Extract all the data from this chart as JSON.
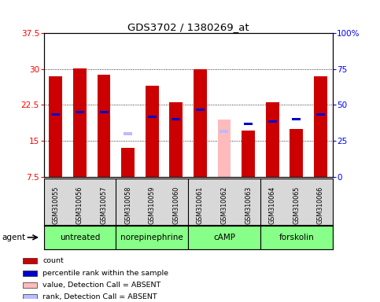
{
  "title": "GDS3702 / 1380269_at",
  "samples": [
    "GSM310055",
    "GSM310056",
    "GSM310057",
    "GSM310058",
    "GSM310059",
    "GSM310060",
    "GSM310061",
    "GSM310062",
    "GSM310063",
    "GSM310064",
    "GSM310065",
    "GSM310066"
  ],
  "count_values": [
    28.5,
    30.2,
    28.8,
    13.5,
    26.5,
    23.0,
    30.0,
    null,
    17.2,
    23.0,
    17.5,
    28.5
  ],
  "rank_values": [
    20.5,
    21.0,
    21.0,
    null,
    20.0,
    19.5,
    21.5,
    null,
    18.5,
    19.0,
    19.5,
    20.5
  ],
  "absent_count": [
    null,
    null,
    null,
    null,
    null,
    null,
    null,
    19.5,
    null,
    null,
    null,
    null
  ],
  "absent_rank": [
    null,
    null,
    null,
    16.5,
    null,
    null,
    null,
    17.0,
    null,
    null,
    null,
    null
  ],
  "groups": [
    {
      "label": "untreated",
      "start": 0,
      "end": 3
    },
    {
      "label": "norepinephrine",
      "start": 3,
      "end": 6
    },
    {
      "label": "cAMP",
      "start": 6,
      "end": 9
    },
    {
      "label": "forskolin",
      "start": 9,
      "end": 12
    }
  ],
  "ylim_left": [
    7.5,
    37.5
  ],
  "ylim_right": [
    0,
    100
  ],
  "yticks_left": [
    7.5,
    15.0,
    22.5,
    30.0,
    37.5
  ],
  "yticks_right": [
    0,
    25,
    50,
    75,
    100
  ],
  "ytick_labels_right": [
    "0",
    "25",
    "50",
    "75",
    "100%"
  ],
  "bar_width": 0.55,
  "count_color": "#cc0000",
  "rank_color": "#0000cc",
  "absent_count_color": "#ffbbbb",
  "absent_rank_color": "#bbbbff",
  "sample_bg": "#d8d8d8",
  "group_bg": "#88ff88",
  "legend_items": [
    {
      "color": "#cc0000",
      "label": "count"
    },
    {
      "color": "#0000cc",
      "label": "percentile rank within the sample"
    },
    {
      "color": "#ffbbbb",
      "label": "value, Detection Call = ABSENT"
    },
    {
      "color": "#bbbbff",
      "label": "rank, Detection Call = ABSENT"
    }
  ]
}
